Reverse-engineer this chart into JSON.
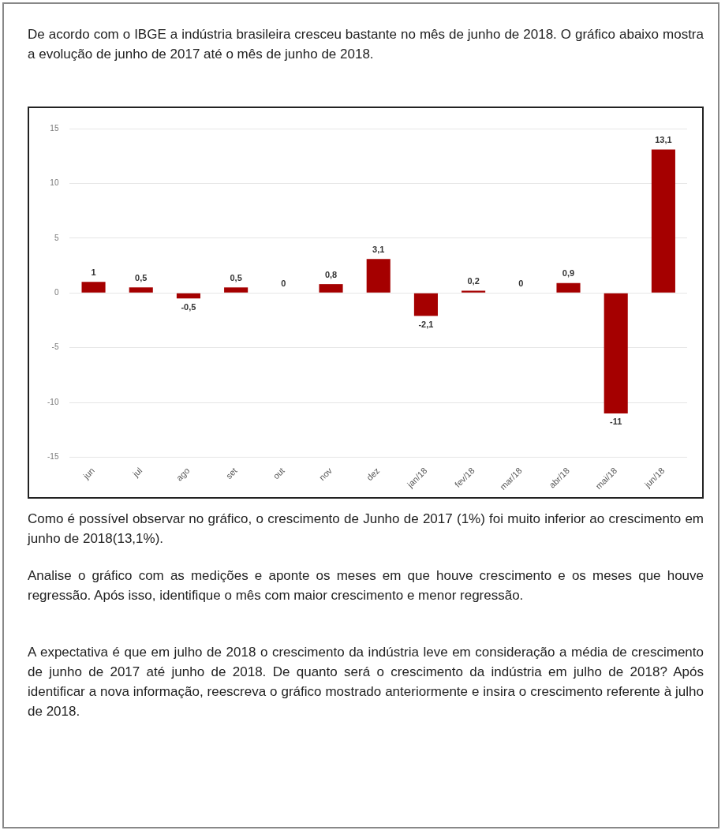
{
  "chart_data": {
    "type": "bar",
    "title": "De acordo com o IBGE a indústria brasileira cresceu bastante no mês de junho de 2018. O gráfico abaixo mostra a evolução de junho de 2017 até o mês de junho de 2018.",
    "categories": [
      "jun",
      "jul",
      "ago",
      "set",
      "out",
      "nov",
      "dez",
      "jan/18",
      "fev/18",
      "mar/18",
      "abr/18",
      "mai/18",
      "jun/18"
    ],
    "values": [
      1,
      0.5,
      -0.5,
      0.5,
      0,
      0.8,
      3.1,
      -2.1,
      0.2,
      0,
      0.9,
      -11,
      13.1
    ],
    "value_labels": [
      "1",
      "0,5",
      "-0,5",
      "0,5",
      "0",
      "0,8",
      "3,1",
      "-2,1",
      "0,2",
      "0",
      "0,9",
      "-11",
      "13,1"
    ],
    "color": "#a50000",
    "ylim": [
      -15,
      15
    ],
    "yticks": [
      -15,
      -10,
      -5,
      0,
      5,
      10,
      15
    ],
    "grid": "y",
    "annotations": [
      "Como é possível observar no gráfico, o crescimento de Junho de 2017 (1%) foi muito inferior ao crescimento em junho de 2018(13,1%).",
      "Analise o gráfico com as medições e aponte os meses em que houve crescimento e os meses que houve regressão. Após isso, identifique o mês com maior crescimento e menor regressão.",
      "A expectativa é que em julho de 2018 o crescimento da indústria leve em consideração a média de crescimento de junho de 2017 até junho de 2018. De quanto será o crescimento da indústria em julho de 2018? Após identificar a nova informação, reescreva o gráfico mostrado anteriormente e insira o crescimento referente à julho de 2018."
    ]
  }
}
